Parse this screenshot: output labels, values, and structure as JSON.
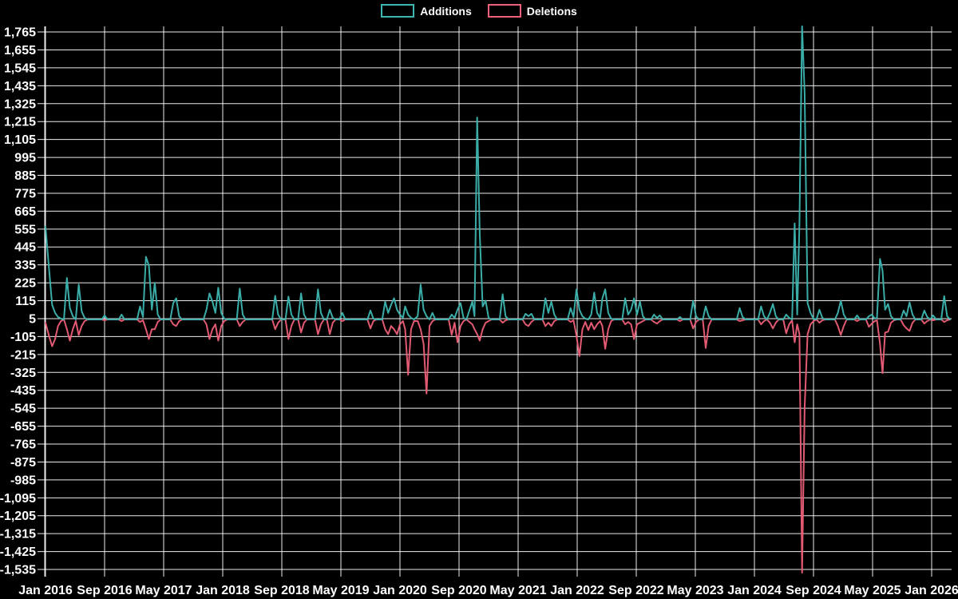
{
  "legend": {
    "items": [
      {
        "label": "Additions",
        "color": "#3db6b1"
      },
      {
        "label": "Deletions",
        "color": "#ee5f78"
      }
    ]
  },
  "chart_data": {
    "type": "line",
    "title": "",
    "xlabel": "",
    "ylabel": "",
    "background_color": "#000000",
    "grid": true,
    "grid_color": "#ffffff",
    "text_color": "#ffffff",
    "legend_position": "top-center",
    "x_axis": {
      "unit": "months since Jan 2016",
      "range_months": [
        0,
        122.8
      ],
      "tick_months": [
        0,
        8,
        16,
        24,
        32,
        40,
        48,
        56,
        64,
        72,
        80,
        88,
        96,
        104,
        112,
        120
      ],
      "tick_labels": [
        "Jan 2016",
        "Sep 2016",
        "May 2017",
        "Jan 2018",
        "Sep 2018",
        "May 2019",
        "Jan 2020",
        "Sep 2020",
        "May 2021",
        "Jan 2022",
        "Sep 2022",
        "May 2023",
        "Jan 2024",
        "Sep 2024",
        "May 2025",
        "Jan 2026"
      ]
    },
    "y_axis": {
      "range": [
        -1569,
        1799
      ],
      "tick_values": [
        1765,
        1655,
        1545,
        1435,
        1325,
        1215,
        1105,
        995,
        885,
        775,
        665,
        555,
        445,
        335,
        225,
        115,
        5,
        -105,
        -215,
        -325,
        -435,
        -545,
        -655,
        -765,
        -875,
        -985,
        -1095,
        -1205,
        -1315,
        -1425,
        -1535
      ]
    },
    "series": [
      {
        "name": "Additions",
        "color": "#3db6b1",
        "column": 1
      },
      {
        "name": "Deletions",
        "color": "#ee5f78",
        "column": 2
      }
    ],
    "points_month_add_del": [
      [
        0,
        570,
        -20
      ],
      [
        0.5,
        300,
        -105
      ],
      [
        0.9,
        90,
        -165
      ],
      [
        1.3,
        40,
        -120
      ],
      [
        1.7,
        15,
        -40
      ],
      [
        2.1,
        5,
        -10
      ],
      [
        2.5,
        0,
        0
      ],
      [
        2.9,
        255,
        -60
      ],
      [
        3.3,
        70,
        -130
      ],
      [
        3.7,
        20,
        -60
      ],
      [
        4.1,
        0,
        -10
      ],
      [
        4.5,
        215,
        -95
      ],
      [
        4.9,
        50,
        -40
      ],
      [
        5.3,
        10,
        -10
      ],
      [
        5.7,
        0,
        0
      ],
      [
        7.6,
        0,
        0
      ],
      [
        8,
        25,
        -5
      ],
      [
        8.4,
        0,
        0
      ],
      [
        9.9,
        0,
        0
      ],
      [
        10.3,
        30,
        -10
      ],
      [
        10.7,
        0,
        0
      ],
      [
        12.4,
        0,
        0
      ],
      [
        12.8,
        80,
        -15
      ],
      [
        13.2,
        15,
        -5
      ],
      [
        13.6,
        385,
        -60
      ],
      [
        14,
        330,
        -120
      ],
      [
        14.4,
        60,
        -60
      ],
      [
        14.8,
        225,
        -60
      ],
      [
        15.2,
        30,
        -15
      ],
      [
        15.6,
        0,
        0
      ],
      [
        16.9,
        0,
        0
      ],
      [
        17.3,
        100,
        -30
      ],
      [
        17.7,
        130,
        -40
      ],
      [
        18.1,
        20,
        -10
      ],
      [
        18.5,
        0,
        0
      ],
      [
        21.4,
        0,
        0
      ],
      [
        21.8,
        60,
        -30
      ],
      [
        22.2,
        160,
        -120
      ],
      [
        22.6,
        110,
        -60
      ],
      [
        23,
        40,
        -30
      ],
      [
        23.4,
        195,
        -130
      ],
      [
        23.8,
        40,
        -40
      ],
      [
        24.2,
        5,
        -10
      ],
      [
        24.6,
        0,
        0
      ],
      [
        25.9,
        0,
        0
      ],
      [
        26.3,
        190,
        -40
      ],
      [
        26.7,
        30,
        -15
      ],
      [
        27.1,
        0,
        0
      ],
      [
        30.7,
        0,
        0
      ],
      [
        31.1,
        145,
        -60
      ],
      [
        31.5,
        30,
        -20
      ],
      [
        31.9,
        0,
        0
      ],
      [
        32.5,
        0,
        0
      ],
      [
        32.9,
        140,
        -120
      ],
      [
        33.3,
        30,
        -40
      ],
      [
        33.7,
        0,
        0
      ],
      [
        34.2,
        0,
        0
      ],
      [
        34.6,
        160,
        -80
      ],
      [
        35,
        30,
        -20
      ],
      [
        35.4,
        0,
        0
      ],
      [
        36.5,
        0,
        0
      ],
      [
        36.9,
        185,
        -90
      ],
      [
        37.3,
        40,
        -30
      ],
      [
        37.7,
        0,
        0
      ],
      [
        38.1,
        0,
        0
      ],
      [
        38.5,
        60,
        -90
      ],
      [
        38.9,
        10,
        -20
      ],
      [
        39.3,
        0,
        0
      ],
      [
        39.8,
        0,
        0
      ],
      [
        40.2,
        40,
        -10
      ],
      [
        40.6,
        0,
        0
      ],
      [
        43.6,
        0,
        0
      ],
      [
        44,
        55,
        -55
      ],
      [
        44.4,
        5,
        -10
      ],
      [
        44.8,
        0,
        0
      ],
      [
        45.6,
        0,
        0
      ],
      [
        46,
        110,
        -60
      ],
      [
        46.4,
        40,
        -90
      ],
      [
        46.8,
        90,
        -40
      ],
      [
        47.2,
        130,
        -60
      ],
      [
        47.6,
        60,
        -90
      ],
      [
        48,
        30,
        -30
      ],
      [
        48.4,
        10,
        -10
      ],
      [
        48.7,
        80,
        -60
      ],
      [
        49.1,
        30,
        -340
      ],
      [
        49.5,
        10,
        -60
      ],
      [
        49.9,
        0,
        -10
      ],
      [
        50.4,
        20,
        -10
      ],
      [
        50.8,
        215,
        -60
      ],
      [
        51.2,
        60,
        -150
      ],
      [
        51.6,
        20,
        -455
      ],
      [
        52,
        0,
        -40
      ],
      [
        52.4,
        40,
        -10
      ],
      [
        52.8,
        0,
        0
      ],
      [
        54.6,
        0,
        0
      ],
      [
        55,
        30,
        -95
      ],
      [
        55.4,
        10,
        -20
      ],
      [
        55.8,
        60,
        -140
      ],
      [
        56.2,
        100,
        -40
      ],
      [
        56.6,
        10,
        -10
      ],
      [
        57,
        0,
        0
      ],
      [
        57.8,
        110,
        -30
      ],
      [
        58.1,
        20,
        -60
      ],
      [
        58.45,
        1240,
        -90
      ],
      [
        58.8,
        530,
        -130
      ],
      [
        59.2,
        80,
        -60
      ],
      [
        59.6,
        115,
        -20
      ],
      [
        60,
        10,
        -10
      ],
      [
        60.4,
        0,
        0
      ],
      [
        61.5,
        0,
        0
      ],
      [
        61.9,
        155,
        -20
      ],
      [
        62.3,
        20,
        -5
      ],
      [
        62.7,
        0,
        0
      ],
      [
        64.6,
        0,
        0
      ],
      [
        65,
        35,
        -30
      ],
      [
        65.4,
        20,
        -40
      ],
      [
        65.8,
        35,
        -15
      ],
      [
        66.2,
        0,
        0
      ],
      [
        67.3,
        0,
        0
      ],
      [
        67.7,
        130,
        -40
      ],
      [
        68.1,
        40,
        -20
      ],
      [
        68.5,
        110,
        -40
      ],
      [
        68.9,
        30,
        -10
      ],
      [
        69.3,
        0,
        0
      ],
      [
        70.7,
        0,
        0
      ],
      [
        71.1,
        70,
        -15
      ],
      [
        71.5,
        15,
        -5
      ],
      [
        71.9,
        185,
        -100
      ],
      [
        72.3,
        60,
        -225
      ],
      [
        72.7,
        20,
        -60
      ],
      [
        73.1,
        5,
        -15
      ],
      [
        73.5,
        0,
        -65
      ],
      [
        73.9,
        30,
        -20
      ],
      [
        74.3,
        165,
        -60
      ],
      [
        74.7,
        40,
        -30
      ],
      [
        75.1,
        10,
        -10
      ],
      [
        75.4,
        130,
        -40
      ],
      [
        75.8,
        185,
        -180
      ],
      [
        76.2,
        40,
        -60
      ],
      [
        76.6,
        5,
        -10
      ],
      [
        77,
        0,
        0
      ],
      [
        78.1,
        0,
        0
      ],
      [
        78.5,
        130,
        -30
      ],
      [
        78.9,
        30,
        -15
      ],
      [
        79.3,
        60,
        -30
      ],
      [
        79.7,
        130,
        -120
      ],
      [
        80.1,
        30,
        -30
      ],
      [
        80.5,
        110,
        -20
      ],
      [
        80.9,
        20,
        -10
      ],
      [
        81.3,
        0,
        0
      ],
      [
        82,
        0,
        0
      ],
      [
        82.4,
        30,
        -15
      ],
      [
        82.8,
        10,
        -25
      ],
      [
        83.2,
        25,
        -10
      ],
      [
        83.6,
        0,
        0
      ],
      [
        85.5,
        0,
        0
      ],
      [
        85.9,
        15,
        -10
      ],
      [
        86.3,
        0,
        0
      ],
      [
        87.3,
        0,
        0
      ],
      [
        87.7,
        115,
        -55
      ],
      [
        88.1,
        20,
        -15
      ],
      [
        88.5,
        0,
        0
      ],
      [
        89,
        0,
        0
      ],
      [
        89.4,
        80,
        -175
      ],
      [
        89.8,
        20,
        -40
      ],
      [
        90.2,
        0,
        0
      ],
      [
        93.6,
        0,
        0
      ],
      [
        94,
        70,
        -10
      ],
      [
        94.4,
        15,
        -5
      ],
      [
        94.8,
        0,
        0
      ],
      [
        96.5,
        0,
        0
      ],
      [
        96.9,
        80,
        -30
      ],
      [
        97.3,
        20,
        -10
      ],
      [
        97.7,
        0,
        0
      ],
      [
        98.1,
        40,
        -20
      ],
      [
        98.5,
        95,
        -55
      ],
      [
        98.9,
        20,
        -20
      ],
      [
        99.3,
        0,
        0
      ],
      [
        99.9,
        0,
        0
      ],
      [
        100.3,
        30,
        -85
      ],
      [
        100.7,
        10,
        -30
      ],
      [
        101.1,
        0,
        -5
      ],
      [
        101.45,
        590,
        -140
      ],
      [
        101.8,
        30,
        -30
      ],
      [
        102.1,
        590,
        -90
      ],
      [
        102.45,
        1800,
        -1555
      ],
      [
        102.8,
        1390,
        -540
      ],
      [
        103.2,
        100,
        -90
      ],
      [
        103.6,
        40,
        -30
      ],
      [
        104,
        5,
        -10
      ],
      [
        104.4,
        0,
        0
      ],
      [
        104.8,
        60,
        -20
      ],
      [
        105.2,
        10,
        -5
      ],
      [
        105.6,
        0,
        0
      ],
      [
        106.9,
        0,
        0
      ],
      [
        107.3,
        40,
        -40
      ],
      [
        107.7,
        115,
        -95
      ],
      [
        108.1,
        30,
        -40
      ],
      [
        108.5,
        0,
        0
      ],
      [
        109.5,
        0,
        0
      ],
      [
        109.9,
        25,
        -10
      ],
      [
        110.3,
        0,
        0
      ],
      [
        111.1,
        0,
        0
      ],
      [
        111.5,
        20,
        -45
      ],
      [
        111.9,
        30,
        -25
      ],
      [
        112.3,
        5,
        -10
      ],
      [
        112.6,
        10,
        -5
      ],
      [
        113,
        372,
        -150
      ],
      [
        113.35,
        298,
        -330
      ],
      [
        113.7,
        60,
        -80
      ],
      [
        114.1,
        95,
        -75
      ],
      [
        114.5,
        20,
        -20
      ],
      [
        114.9,
        0,
        -5
      ],
      [
        115.3,
        0,
        0
      ],
      [
        115.8,
        0,
        0
      ],
      [
        116.2,
        55,
        -35
      ],
      [
        116.6,
        20,
        -55
      ],
      [
        117,
        105,
        -70
      ],
      [
        117.4,
        30,
        -20
      ],
      [
        117.8,
        0,
        0
      ],
      [
        118.6,
        0,
        0
      ],
      [
        119,
        55,
        -25
      ],
      [
        119.4,
        15,
        -10
      ],
      [
        119.8,
        0,
        0
      ],
      [
        120.2,
        25,
        -5
      ],
      [
        120.6,
        0,
        0
      ],
      [
        121.3,
        0,
        0
      ],
      [
        121.7,
        143,
        -15
      ],
      [
        122.1,
        20,
        -5
      ],
      [
        122.5,
        0,
        0
      ]
    ]
  }
}
